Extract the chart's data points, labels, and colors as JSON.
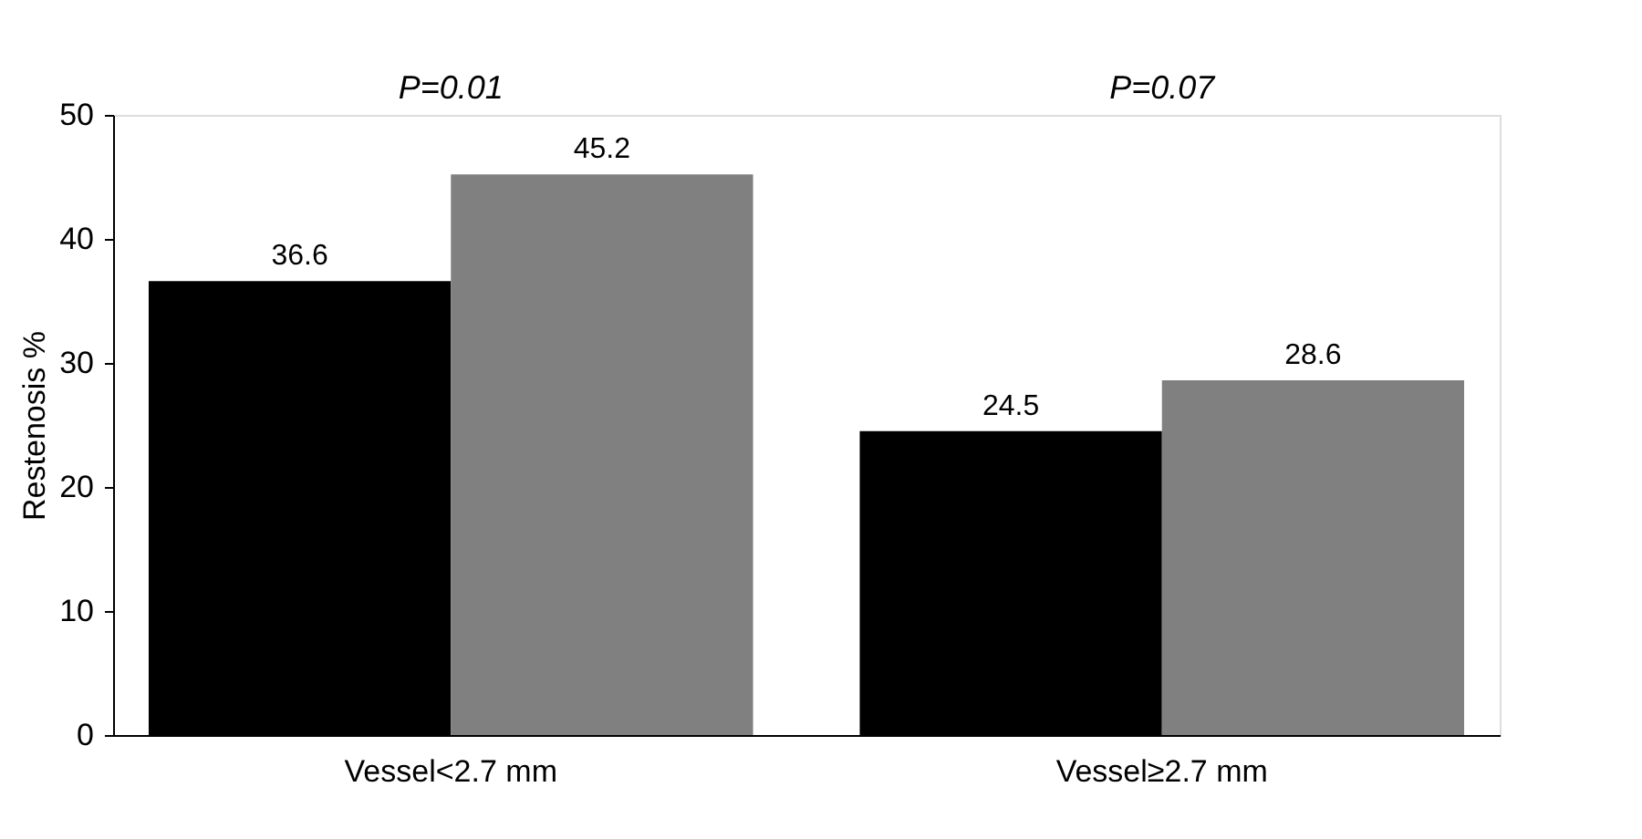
{
  "chart_data": {
    "type": "bar",
    "ylabel": "Restenosis %",
    "categories": [
      "Vessel<2.7 mm",
      "Vessel≥2.7 mm"
    ],
    "series": [
      {
        "color": "#000000",
        "values": [
          36.6,
          24.5
        ]
      },
      {
        "color": "#808080",
        "values": [
          45.2,
          28.6
        ]
      }
    ],
    "ylim": [
      0,
      50
    ],
    "yticks": [
      0,
      10,
      20,
      30,
      40,
      50
    ],
    "data_labels": true,
    "grid": false,
    "legend": false,
    "annotations": [
      "P=0.01",
      "P=0.07"
    ]
  }
}
